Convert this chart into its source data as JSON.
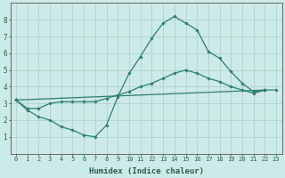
{
  "xlabel": "Humidex (Indice chaleur)",
  "bg_color": "#cceae7",
  "grid_color": "#aad4d0",
  "line_color": "#2e7d6e",
  "marker": "D",
  "markersize": 1.8,
  "linewidth": 0.9,
  "xlim": [
    -0.5,
    23.5
  ],
  "ylim": [
    0,
    9
  ],
  "xticks": [
    0,
    1,
    2,
    3,
    4,
    5,
    6,
    7,
    8,
    9,
    10,
    11,
    12,
    13,
    14,
    15,
    16,
    17,
    18,
    19,
    20,
    21,
    22,
    23
  ],
  "yticks": [
    1,
    2,
    3,
    4,
    5,
    6,
    7,
    8
  ],
  "line1_x": [
    0,
    1,
    2,
    3,
    4,
    5,
    6,
    7,
    8,
    9,
    10,
    11,
    12,
    13,
    14,
    15,
    16,
    17,
    18,
    19,
    20,
    21,
    22
  ],
  "line1_y": [
    3.2,
    2.6,
    2.2,
    2.0,
    1.6,
    1.4,
    1.1,
    1.0,
    1.7,
    3.4,
    4.8,
    5.8,
    6.9,
    7.8,
    8.2,
    7.8,
    7.4,
    6.1,
    5.7,
    4.9,
    4.2,
    3.7,
    3.8
  ],
  "line2_x": [
    0,
    1,
    2,
    3,
    4,
    5,
    6,
    7,
    8,
    9,
    10,
    11,
    12,
    13,
    14,
    15,
    16,
    17,
    18,
    19,
    20,
    21,
    22,
    23
  ],
  "line2_y": [
    3.2,
    2.7,
    2.7,
    3.0,
    3.1,
    3.1,
    3.1,
    3.1,
    3.3,
    3.5,
    3.7,
    4.0,
    4.2,
    4.5,
    4.8,
    5.0,
    4.8,
    4.5,
    4.3,
    4.0,
    3.8,
    3.6,
    3.8,
    3.8
  ],
  "line3_x": [
    0,
    22
  ],
  "line3_y": [
    3.2,
    3.8
  ],
  "spine_color": "#555555",
  "tick_fontsize": 5.0,
  "xlabel_fontsize": 6.5
}
